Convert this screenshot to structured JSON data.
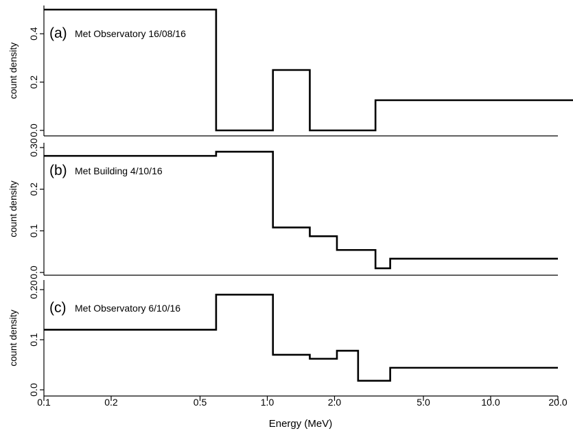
{
  "chart_data": {
    "type": "step",
    "xlabel": "Energy (MeV)",
    "x_scale": "log",
    "xlim": [
      0.1,
      20.0
    ],
    "x_ticks": [
      {
        "value": 0.1,
        "label": "0.1"
      },
      {
        "value": 0.2,
        "label": "0.2"
      },
      {
        "value": 0.5,
        "label": "0.5"
      },
      {
        "value": 1.0,
        "label": "1.0"
      },
      {
        "value": 2.0,
        "label": "2.0"
      },
      {
        "value": 5.0,
        "label": "5.0"
      },
      {
        "value": 10.0,
        "label": "10.0"
      },
      {
        "value": 20.0,
        "label": "20.0"
      }
    ],
    "panels": [
      {
        "tag": "(a)",
        "title": "Met Observatory 16/08/16",
        "ylabel": "count density",
        "ylim": [
          0.0,
          0.5
        ],
        "y_ticks": [
          {
            "value": 0.0,
            "label": "0.0"
          },
          {
            "value": 0.2,
            "label": "0.2"
          },
          {
            "value": 0.4,
            "label": "0.4"
          }
        ],
        "steps": [
          {
            "x0": 0.1,
            "x1": 0.59,
            "y": 0.5
          },
          {
            "x0": 0.59,
            "x1": 1.06,
            "y": 0.0
          },
          {
            "x0": 1.06,
            "x1": 1.55,
            "y": 0.25
          },
          {
            "x0": 1.55,
            "x1": 3.05,
            "y": 0.0
          },
          {
            "x0": 3.05,
            "x1": 20.0,
            "y": 0.125
          }
        ]
      },
      {
        "tag": "(b)",
        "title": "Met Building 4/10/16",
        "ylabel": "count density",
        "ylim": [
          0.0,
          0.3
        ],
        "y_ticks": [
          {
            "value": 0.0,
            "label": "0.0"
          },
          {
            "value": 0.1,
            "label": "0.1"
          },
          {
            "value": 0.2,
            "label": "0.2"
          },
          {
            "value": 0.3,
            "label": "0.30"
          }
        ],
        "steps": [
          {
            "x0": 0.1,
            "x1": 0.59,
            "y": 0.28
          },
          {
            "x0": 0.59,
            "x1": 1.06,
            "y": 0.29
          },
          {
            "x0": 1.06,
            "x1": 1.55,
            "y": 0.108
          },
          {
            "x0": 1.55,
            "x1": 2.05,
            "y": 0.087
          },
          {
            "x0": 2.05,
            "x1": 3.05,
            "y": 0.054
          },
          {
            "x0": 3.05,
            "x1": 3.55,
            "y": 0.01
          },
          {
            "x0": 3.55,
            "x1": 20.0,
            "y": 0.033
          }
        ]
      },
      {
        "tag": "(c)",
        "title": "Met Observatory 6/10/16",
        "ylabel": "count density",
        "ylim": [
          0.0,
          0.2
        ],
        "y_ticks": [
          {
            "value": 0.0,
            "label": "0.0"
          },
          {
            "value": 0.1,
            "label": "0.1"
          },
          {
            "value": 0.2,
            "label": "0.20"
          }
        ],
        "steps": [
          {
            "x0": 0.1,
            "x1": 0.59,
            "y": 0.12
          },
          {
            "x0": 0.59,
            "x1": 1.06,
            "y": 0.19
          },
          {
            "x0": 1.06,
            "x1": 1.55,
            "y": 0.07
          },
          {
            "x0": 1.55,
            "x1": 2.05,
            "y": 0.062
          },
          {
            "x0": 2.05,
            "x1": 2.55,
            "y": 0.078
          },
          {
            "x0": 2.55,
            "x1": 3.55,
            "y": 0.018
          },
          {
            "x0": 3.55,
            "x1": 20.0,
            "y": 0.044
          }
        ]
      }
    ]
  }
}
